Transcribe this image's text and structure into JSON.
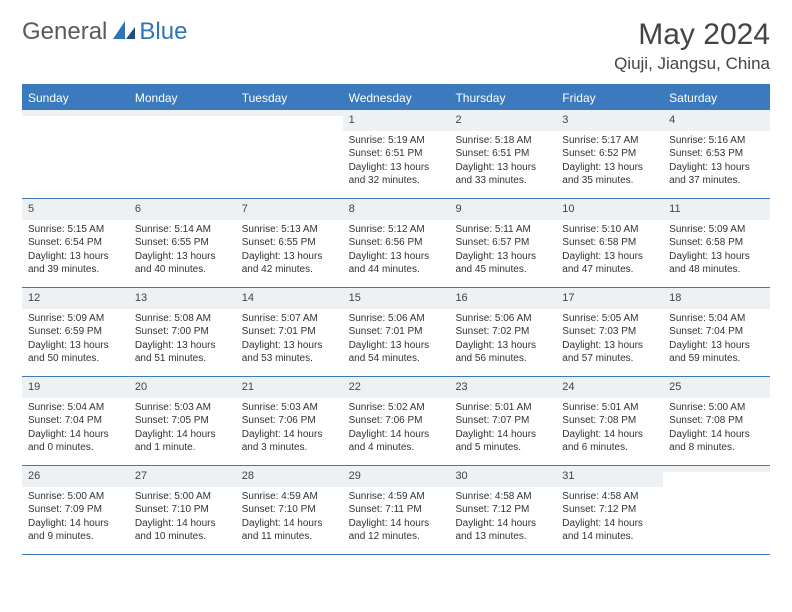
{
  "brand": {
    "part1": "General",
    "part2": "Blue"
  },
  "title": "May 2024",
  "location": "Qiuji, Jiangsu, China",
  "colors": {
    "header_bg": "#3a7abd",
    "header_text": "#ffffff",
    "daynum_bg": "#eef1f4",
    "body_text": "#333333",
    "border": "#3a7abd"
  },
  "day_names": [
    "Sunday",
    "Monday",
    "Tuesday",
    "Wednesday",
    "Thursday",
    "Friday",
    "Saturday"
  ],
  "weeks": [
    [
      {
        "n": "",
        "sunrise": "",
        "sunset": "",
        "daylight": ""
      },
      {
        "n": "",
        "sunrise": "",
        "sunset": "",
        "daylight": ""
      },
      {
        "n": "",
        "sunrise": "",
        "sunset": "",
        "daylight": ""
      },
      {
        "n": "1",
        "sunrise": "Sunrise: 5:19 AM",
        "sunset": "Sunset: 6:51 PM",
        "daylight": "Daylight: 13 hours and 32 minutes."
      },
      {
        "n": "2",
        "sunrise": "Sunrise: 5:18 AM",
        "sunset": "Sunset: 6:51 PM",
        "daylight": "Daylight: 13 hours and 33 minutes."
      },
      {
        "n": "3",
        "sunrise": "Sunrise: 5:17 AM",
        "sunset": "Sunset: 6:52 PM",
        "daylight": "Daylight: 13 hours and 35 minutes."
      },
      {
        "n": "4",
        "sunrise": "Sunrise: 5:16 AM",
        "sunset": "Sunset: 6:53 PM",
        "daylight": "Daylight: 13 hours and 37 minutes."
      }
    ],
    [
      {
        "n": "5",
        "sunrise": "Sunrise: 5:15 AM",
        "sunset": "Sunset: 6:54 PM",
        "daylight": "Daylight: 13 hours and 39 minutes."
      },
      {
        "n": "6",
        "sunrise": "Sunrise: 5:14 AM",
        "sunset": "Sunset: 6:55 PM",
        "daylight": "Daylight: 13 hours and 40 minutes."
      },
      {
        "n": "7",
        "sunrise": "Sunrise: 5:13 AM",
        "sunset": "Sunset: 6:55 PM",
        "daylight": "Daylight: 13 hours and 42 minutes."
      },
      {
        "n": "8",
        "sunrise": "Sunrise: 5:12 AM",
        "sunset": "Sunset: 6:56 PM",
        "daylight": "Daylight: 13 hours and 44 minutes."
      },
      {
        "n": "9",
        "sunrise": "Sunrise: 5:11 AM",
        "sunset": "Sunset: 6:57 PM",
        "daylight": "Daylight: 13 hours and 45 minutes."
      },
      {
        "n": "10",
        "sunrise": "Sunrise: 5:10 AM",
        "sunset": "Sunset: 6:58 PM",
        "daylight": "Daylight: 13 hours and 47 minutes."
      },
      {
        "n": "11",
        "sunrise": "Sunrise: 5:09 AM",
        "sunset": "Sunset: 6:58 PM",
        "daylight": "Daylight: 13 hours and 48 minutes."
      }
    ],
    [
      {
        "n": "12",
        "sunrise": "Sunrise: 5:09 AM",
        "sunset": "Sunset: 6:59 PM",
        "daylight": "Daylight: 13 hours and 50 minutes."
      },
      {
        "n": "13",
        "sunrise": "Sunrise: 5:08 AM",
        "sunset": "Sunset: 7:00 PM",
        "daylight": "Daylight: 13 hours and 51 minutes."
      },
      {
        "n": "14",
        "sunrise": "Sunrise: 5:07 AM",
        "sunset": "Sunset: 7:01 PM",
        "daylight": "Daylight: 13 hours and 53 minutes."
      },
      {
        "n": "15",
        "sunrise": "Sunrise: 5:06 AM",
        "sunset": "Sunset: 7:01 PM",
        "daylight": "Daylight: 13 hours and 54 minutes."
      },
      {
        "n": "16",
        "sunrise": "Sunrise: 5:06 AM",
        "sunset": "Sunset: 7:02 PM",
        "daylight": "Daylight: 13 hours and 56 minutes."
      },
      {
        "n": "17",
        "sunrise": "Sunrise: 5:05 AM",
        "sunset": "Sunset: 7:03 PM",
        "daylight": "Daylight: 13 hours and 57 minutes."
      },
      {
        "n": "18",
        "sunrise": "Sunrise: 5:04 AM",
        "sunset": "Sunset: 7:04 PM",
        "daylight": "Daylight: 13 hours and 59 minutes."
      }
    ],
    [
      {
        "n": "19",
        "sunrise": "Sunrise: 5:04 AM",
        "sunset": "Sunset: 7:04 PM",
        "daylight": "Daylight: 14 hours and 0 minutes."
      },
      {
        "n": "20",
        "sunrise": "Sunrise: 5:03 AM",
        "sunset": "Sunset: 7:05 PM",
        "daylight": "Daylight: 14 hours and 1 minute."
      },
      {
        "n": "21",
        "sunrise": "Sunrise: 5:03 AM",
        "sunset": "Sunset: 7:06 PM",
        "daylight": "Daylight: 14 hours and 3 minutes."
      },
      {
        "n": "22",
        "sunrise": "Sunrise: 5:02 AM",
        "sunset": "Sunset: 7:06 PM",
        "daylight": "Daylight: 14 hours and 4 minutes."
      },
      {
        "n": "23",
        "sunrise": "Sunrise: 5:01 AM",
        "sunset": "Sunset: 7:07 PM",
        "daylight": "Daylight: 14 hours and 5 minutes."
      },
      {
        "n": "24",
        "sunrise": "Sunrise: 5:01 AM",
        "sunset": "Sunset: 7:08 PM",
        "daylight": "Daylight: 14 hours and 6 minutes."
      },
      {
        "n": "25",
        "sunrise": "Sunrise: 5:00 AM",
        "sunset": "Sunset: 7:08 PM",
        "daylight": "Daylight: 14 hours and 8 minutes."
      }
    ],
    [
      {
        "n": "26",
        "sunrise": "Sunrise: 5:00 AM",
        "sunset": "Sunset: 7:09 PM",
        "daylight": "Daylight: 14 hours and 9 minutes."
      },
      {
        "n": "27",
        "sunrise": "Sunrise: 5:00 AM",
        "sunset": "Sunset: 7:10 PM",
        "daylight": "Daylight: 14 hours and 10 minutes."
      },
      {
        "n": "28",
        "sunrise": "Sunrise: 4:59 AM",
        "sunset": "Sunset: 7:10 PM",
        "daylight": "Daylight: 14 hours and 11 minutes."
      },
      {
        "n": "29",
        "sunrise": "Sunrise: 4:59 AM",
        "sunset": "Sunset: 7:11 PM",
        "daylight": "Daylight: 14 hours and 12 minutes."
      },
      {
        "n": "30",
        "sunrise": "Sunrise: 4:58 AM",
        "sunset": "Sunset: 7:12 PM",
        "daylight": "Daylight: 14 hours and 13 minutes."
      },
      {
        "n": "31",
        "sunrise": "Sunrise: 4:58 AM",
        "sunset": "Sunset: 7:12 PM",
        "daylight": "Daylight: 14 hours and 14 minutes."
      },
      {
        "n": "",
        "sunrise": "",
        "sunset": "",
        "daylight": ""
      }
    ]
  ]
}
